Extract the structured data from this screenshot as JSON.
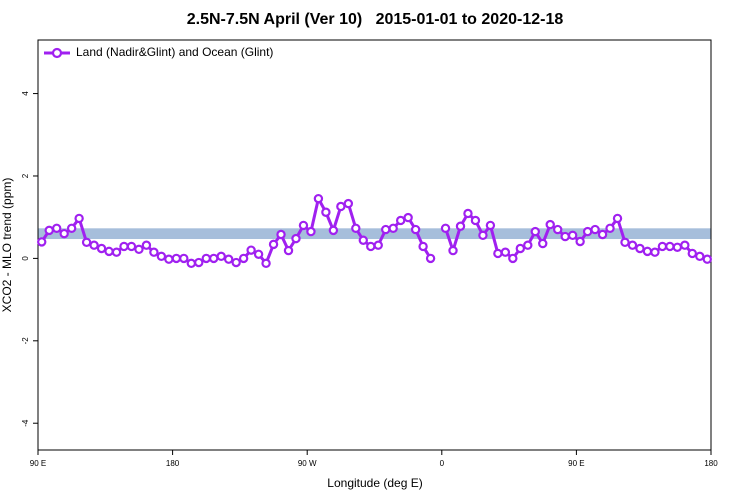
{
  "chart_data": {
    "type": "line",
    "title": "2.5N-7.5N April (Ver 10)   2015-01-01 to 2020-12-18",
    "x_label": "Longitude (deg E)",
    "y_label": "XCO2 - MLO trend (ppm)",
    "xlim": [
      90,
      540
    ],
    "ylim": [
      -4.65,
      5.3
    ],
    "xticks": [
      {
        "value": 90,
        "label": "90 E"
      },
      180,
      {
        "value": 270,
        "label": "90 W"
      },
      {
        "value": 360,
        "label": "0"
      },
      {
        "value": 450,
        "label": "90 E"
      },
      {
        "value": 540,
        "label": "180"
      }
    ],
    "yticks": [
      -4,
      -2,
      0,
      2,
      4
    ],
    "legend_position": "top-left",
    "band": {
      "range": [
        0.47,
        0.73
      ],
      "color": "#a6bedb"
    },
    "x": [
      92.5,
      97.5,
      102.5,
      107.5,
      112.5,
      117.5,
      122.5,
      127.5,
      132.5,
      137.5,
      142.5,
      147.5,
      152.5,
      157.5,
      162.5,
      167.5,
      172.5,
      177.5,
      182.5,
      187.5,
      192.5,
      197.5,
      202.5,
      207.5,
      212.5,
      217.5,
      222.5,
      227.5,
      232.5,
      237.5,
      242.5,
      247.5,
      252.5,
      257.5,
      262.5,
      267.5,
      272.5,
      277.5,
      282.5,
      287.5,
      292.5,
      297.5,
      302.5,
      307.5,
      312.5,
      317.5,
      322.5,
      327.5,
      332.5,
      337.5,
      342.5,
      347.5,
      352.5,
      357.5,
      362.5,
      367.5,
      372.5,
      377.5,
      382.5,
      387.5,
      392.5,
      397.5,
      402.5,
      407.5,
      412.5,
      417.5,
      422.5,
      427.5,
      432.5,
      437.5,
      442.5,
      447.5,
      452.5,
      457.5,
      462.5,
      467.5,
      472.5,
      477.5,
      482.5,
      487.5,
      492.5,
      497.5,
      502.5,
      507.5,
      512.5,
      517.5,
      522.5,
      527.5,
      532.5,
      537.5
    ],
    "series": [
      {
        "name": "Land (Nadir&Glint) and Ocean (Glint)",
        "color": "#a020f0",
        "values": [
          0.4,
          0.68,
          0.73,
          0.6,
          0.73,
          0.97,
          0.39,
          0.32,
          0.24,
          0.17,
          0.15,
          0.29,
          0.29,
          0.22,
          0.32,
          0.15,
          0.05,
          -0.02,
          0,
          0,
          -0.12,
          -0.1,
          0,
          0,
          0.05,
          -0.02,
          -0.1,
          0,
          0.2,
          0.1,
          -0.12,
          0.34,
          0.58,
          0.19,
          0.48,
          0.8,
          0.65,
          1.45,
          1.12,
          0.68,
          1.26,
          1.33,
          0.73,
          0.44,
          0.29,
          0.32,
          0.7,
          0.73,
          0.92,
          0.99,
          0.7,
          0.29,
          0,
          null,
          0.73,
          0.19,
          0.78,
          1.09,
          0.92,
          0.56,
          0.8,
          0.12,
          0.15,
          0,
          0.24,
          0.32,
          0.65,
          0.36,
          0.82,
          0.7,
          0.53,
          0.56,
          0.41,
          0.65,
          0.7,
          0.58,
          0.73,
          0.97,
          0.39,
          0.32,
          0.24,
          0.17,
          0.15,
          0.29,
          0.29,
          0.27,
          0.32,
          0.12,
          0.05,
          -0.02
        ]
      }
    ]
  }
}
